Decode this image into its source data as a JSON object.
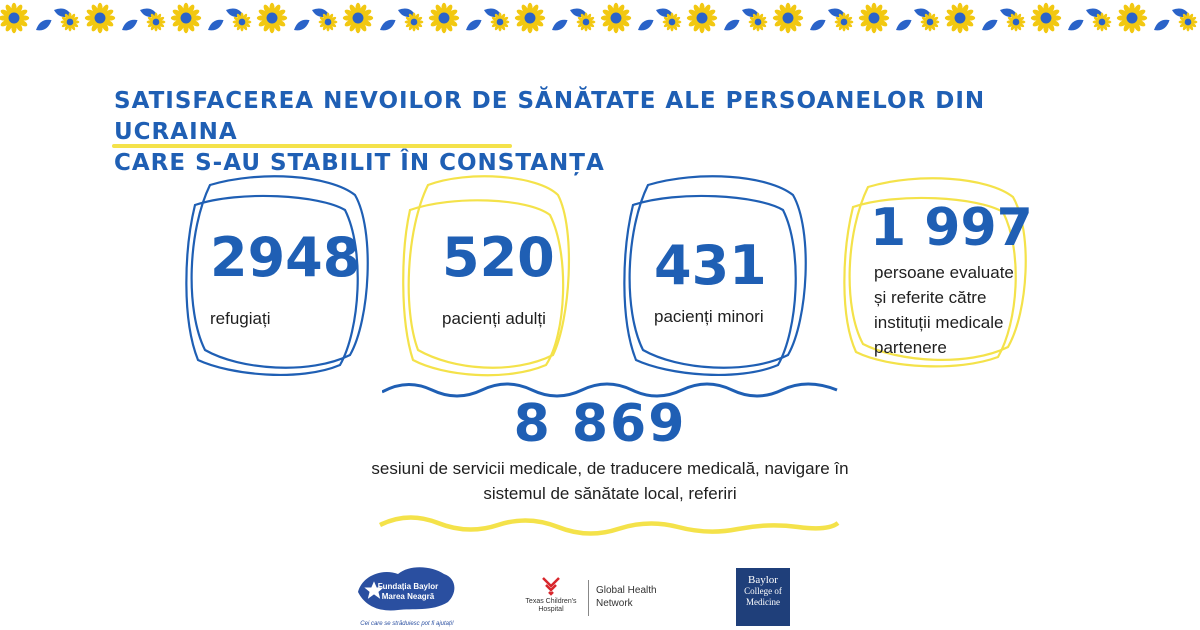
{
  "title": {
    "line1": "SATISFACEREA NEVOILOR DE SĂNĂTATE ALE PERSOANELOR DIN UCRAINA",
    "line2": "CARE S-AU STABILIT ÎN CONSTANȚA"
  },
  "stats": [
    {
      "value": "2948",
      "label": "refugiați"
    },
    {
      "value": "520",
      "label": "pacienți adulți"
    },
    {
      "value": "431",
      "label": "pacienți minori"
    },
    {
      "value": "1 997",
      "label_lines": [
        "persoane evaluate",
        "și referite către",
        "instituții medicale",
        "partenere"
      ]
    }
  ],
  "summary": {
    "value": "8 869",
    "label_lines": [
      "sesiuni de servicii medicale, de traducere medicală, navigare în",
      "sistemul de sănătate local, referiri"
    ]
  },
  "logos": {
    "baylor_foundation": {
      "line1": "Fundația Baylor",
      "line2": "Marea Neagră",
      "tagline": "Cei care se străduiesc pot fi ajutați!"
    },
    "texas_childrens": {
      "name_line1": "Texas Children's",
      "name_line2": "Hospital",
      "network_line1": "Global Health",
      "network_line2": "Network"
    },
    "baylor_college": {
      "line1": "Baylor",
      "line2": "College of",
      "line3": "Medicine"
    }
  },
  "colors": {
    "blue": "#1f5fb4",
    "yellow": "#f4e24a",
    "navy": "#1f3f7a"
  }
}
